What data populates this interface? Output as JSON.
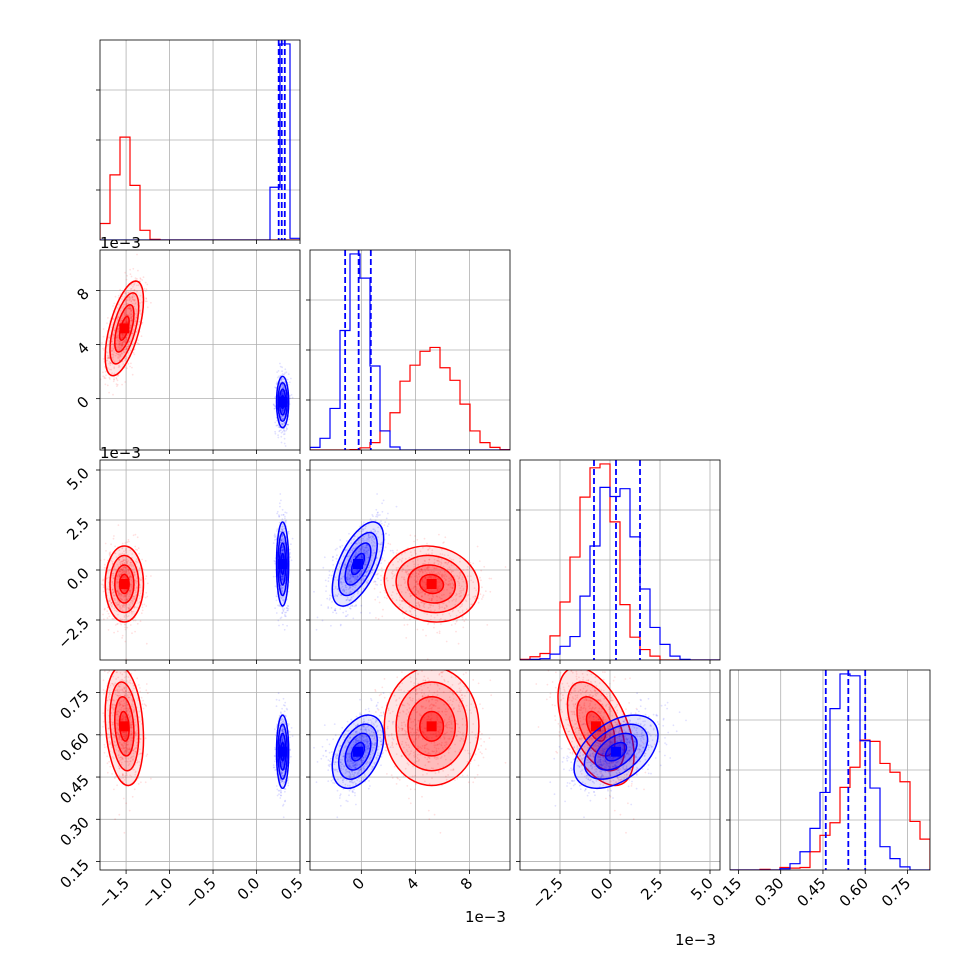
{
  "figure": {
    "kind": "corner plot",
    "parameters": 4
  },
  "chart_data": {
    "type": "corner",
    "grid": true,
    "colors": {
      "red": "#ff0000",
      "blue": "#0000ff",
      "quantile_line": "#0000ff"
    },
    "axes": [
      {
        "index": 0,
        "range": [
          -1.8,
          0.5
        ],
        "ticks": [
          -1.5,
          -1.0,
          -0.5,
          0.0,
          0.5
        ],
        "tick_labels": [
          "−1.5",
          "−1.0",
          "−0.5",
          "0.0",
          "0.5"
        ],
        "offset": ""
      },
      {
        "index": 1,
        "range": [
          -3.8,
          11.0
        ],
        "ticks": [
          0,
          4,
          8
        ],
        "tick_labels": [
          "0",
          "4",
          "8"
        ],
        "offset": "1e−3"
      },
      {
        "index": 2,
        "range": [
          -4.5,
          5.5
        ],
        "ticks": [
          -2.5,
          0.0,
          2.5,
          5.0
        ],
        "tick_labels": [
          "−2.5",
          "0.0",
          "2.5",
          "5.0"
        ],
        "offset": "1e−3"
      },
      {
        "index": 3,
        "range": [
          0.12,
          0.83
        ],
        "ticks": [
          0.15,
          0.3,
          0.45,
          0.6,
          0.75
        ],
        "tick_labels": [
          "0.15",
          "0.30",
          "0.45",
          "0.60",
          "0.75"
        ],
        "offset": ""
      }
    ],
    "series": [
      {
        "color": "red",
        "mean": [
          -1.52,
          5.2,
          -0.7,
          0.63
        ],
        "sd": [
          0.11,
          1.75,
          0.95,
          0.105
        ],
        "corr": [
          [
            1,
            0.6,
            0,
            -0.2
          ],
          [
            0.6,
            1,
            -0.1,
            0
          ],
          [
            0,
            -0.1,
            1,
            -0.5
          ],
          [
            -0.2,
            0,
            -0.5,
            1
          ]
        ]
      },
      {
        "color": "blue",
        "mean": [
          0.3,
          -0.25,
          0.3,
          0.54
        ],
        "sd": [
          0.035,
          0.95,
          1.05,
          0.065
        ],
        "corr": [
          [
            1,
            0,
            0,
            0
          ],
          [
            0,
            1,
            0.6,
            0.4
          ],
          [
            0,
            0.6,
            1,
            0.45
          ],
          [
            0,
            0.4,
            0.45,
            1
          ]
        ]
      }
    ],
    "quantile_lines": [
      [
        0.255,
        0.29,
        0.325
      ],
      [
        -1.2,
        -0.2,
        0.7
      ],
      [
        -0.8,
        0.3,
        1.5
      ],
      [
        0.46,
        0.54,
        0.6
      ]
    ]
  }
}
